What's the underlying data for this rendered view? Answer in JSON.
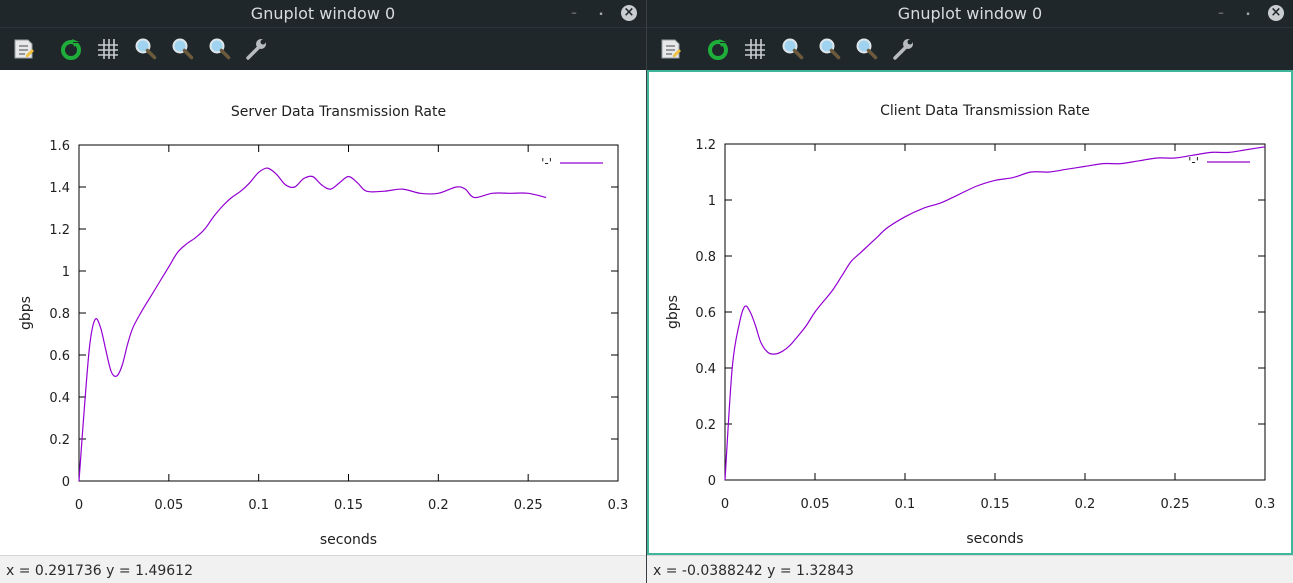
{
  "colors": {
    "series": "#9400d3",
    "focus": "#3fb59c",
    "titlebar": "#20272b"
  },
  "window_controls": {
    "minimize": "–",
    "maximize": "⬝",
    "close": "×"
  },
  "toolbar_icons": [
    "replot-icon",
    "refresh-icon",
    "grid-icon",
    "zoom-previous-icon",
    "zoom-next-icon",
    "unzoom-icon",
    "settings-wrench-icon"
  ],
  "windows": [
    {
      "title": "Gnuplot window 0",
      "status": "x = 0.291736 y = 1.49612",
      "chart_data": {
        "type": "line",
        "title": "Server Data Transmission Rate",
        "xlabel": "seconds",
        "ylabel": "gbps",
        "xlim": [
          0,
          0.3
        ],
        "ylim": [
          0,
          1.6
        ],
        "xticks": [
          0,
          0.05,
          0.1,
          0.15,
          0.2,
          0.25,
          0.3
        ],
        "xtick_labels": [
          "0",
          "0.05",
          "0.1",
          "0.15",
          "0.2",
          "0.25",
          "0.3"
        ],
        "yticks": [
          0,
          0.2,
          0.4,
          0.6,
          0.8,
          1,
          1.2,
          1.4,
          1.6
        ],
        "ytick_labels": [
          "0",
          "0.2",
          "0.4",
          "0.6",
          "0.8",
          "1",
          "1.2",
          "1.4",
          "1.6"
        ],
        "grid": false,
        "legend_position": "top-right",
        "series": [
          {
            "name": "'-'",
            "x": [
              0,
              0.003,
              0.006,
              0.009,
              0.012,
              0.015,
              0.018,
              0.021,
              0.024,
              0.027,
              0.03,
              0.035,
              0.04,
              0.045,
              0.05,
              0.055,
              0.06,
              0.065,
              0.07,
              0.075,
              0.08,
              0.085,
              0.09,
              0.095,
              0.1,
              0.105,
              0.11,
              0.115,
              0.12,
              0.125,
              0.13,
              0.135,
              0.14,
              0.145,
              0.15,
              0.155,
              0.16,
              0.17,
              0.18,
              0.19,
              0.2,
              0.21,
              0.215,
              0.22,
              0.23,
              0.24,
              0.25,
              0.26
            ],
            "y": [
              0,
              0.35,
              0.65,
              0.77,
              0.73,
              0.62,
              0.52,
              0.5,
              0.55,
              0.65,
              0.73,
              0.81,
              0.88,
              0.95,
              1.02,
              1.09,
              1.13,
              1.16,
              1.2,
              1.26,
              1.31,
              1.35,
              1.38,
              1.42,
              1.47,
              1.49,
              1.46,
              1.41,
              1.4,
              1.44,
              1.45,
              1.41,
              1.39,
              1.42,
              1.45,
              1.42,
              1.38,
              1.38,
              1.39,
              1.37,
              1.37,
              1.4,
              1.39,
              1.35,
              1.37,
              1.37,
              1.37,
              1.35
            ]
          }
        ]
      }
    },
    {
      "title": "Gnuplot window 0",
      "status": "x = -0.0388242 y = 1.32843",
      "chart_data": {
        "type": "line",
        "title": "Client Data Transmission Rate",
        "xlabel": "seconds",
        "ylabel": "gbps",
        "xlim": [
          0,
          0.3
        ],
        "ylim": [
          0,
          1.2
        ],
        "xticks": [
          0,
          0.05,
          0.1,
          0.15,
          0.2,
          0.25,
          0.3
        ],
        "xtick_labels": [
          "0",
          "0.05",
          "0.1",
          "0.15",
          "0.2",
          "0.25",
          "0.3"
        ],
        "yticks": [
          0,
          0.2,
          0.4,
          0.6,
          0.8,
          1,
          1.2
        ],
        "ytick_labels": [
          "0",
          "0.2",
          "0.4",
          "0.6",
          "0.8",
          "1",
          "1.2"
        ],
        "grid": false,
        "legend_position": "top-right",
        "series": [
          {
            "name": "'-'",
            "x": [
              0,
              0.004,
              0.008,
              0.011,
              0.014,
              0.017,
              0.02,
              0.024,
              0.028,
              0.032,
              0.036,
              0.04,
              0.045,
              0.05,
              0.055,
              0.06,
              0.065,
              0.07,
              0.075,
              0.08,
              0.085,
              0.09,
              0.1,
              0.11,
              0.12,
              0.13,
              0.14,
              0.15,
              0.16,
              0.17,
              0.18,
              0.19,
              0.2,
              0.21,
              0.22,
              0.23,
              0.24,
              0.25,
              0.26,
              0.27,
              0.28,
              0.29,
              0.3
            ],
            "y": [
              0,
              0.4,
              0.56,
              0.62,
              0.6,
              0.55,
              0.49,
              0.455,
              0.45,
              0.46,
              0.48,
              0.51,
              0.55,
              0.6,
              0.64,
              0.68,
              0.73,
              0.78,
              0.81,
              0.84,
              0.87,
              0.9,
              0.94,
              0.97,
              0.99,
              1.02,
              1.05,
              1.07,
              1.08,
              1.1,
              1.1,
              1.11,
              1.12,
              1.13,
              1.13,
              1.14,
              1.15,
              1.15,
              1.16,
              1.17,
              1.17,
              1.18,
              1.19
            ]
          }
        ]
      }
    }
  ]
}
